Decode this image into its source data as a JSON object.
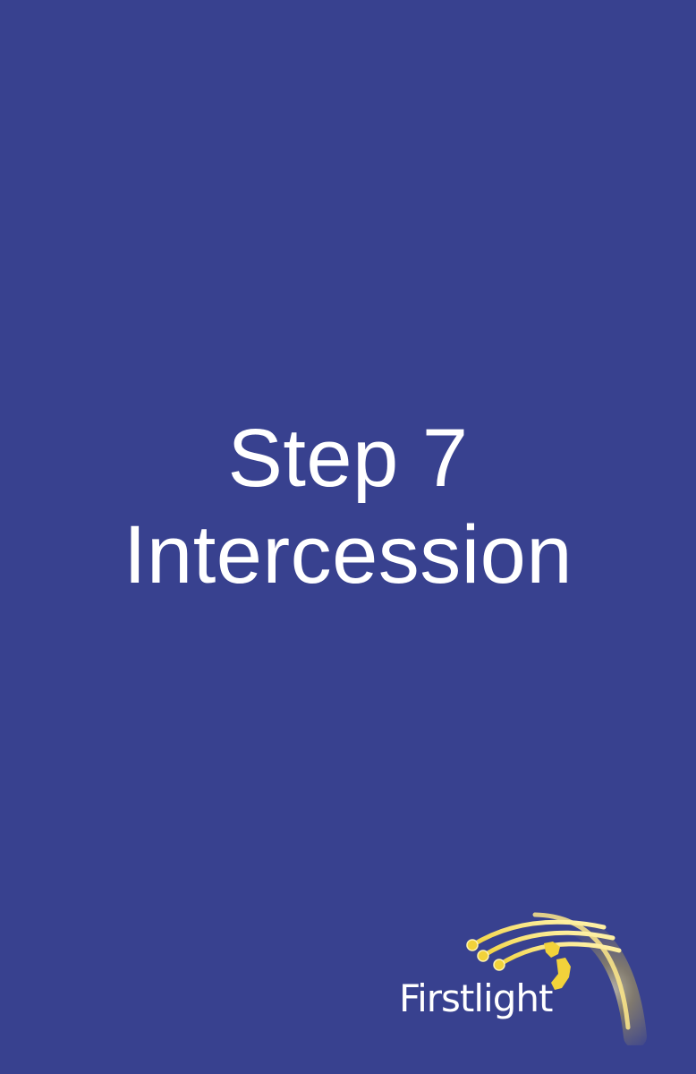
{
  "card": {
    "background_color": "#38418f",
    "text_color": "#ffffff"
  },
  "title": {
    "line1": "Step 7",
    "line2": "Intercession"
  },
  "logo": {
    "wordmark": "Firstlight",
    "accent_color": "#f2d23a",
    "icon": "comet-trails-icon"
  }
}
